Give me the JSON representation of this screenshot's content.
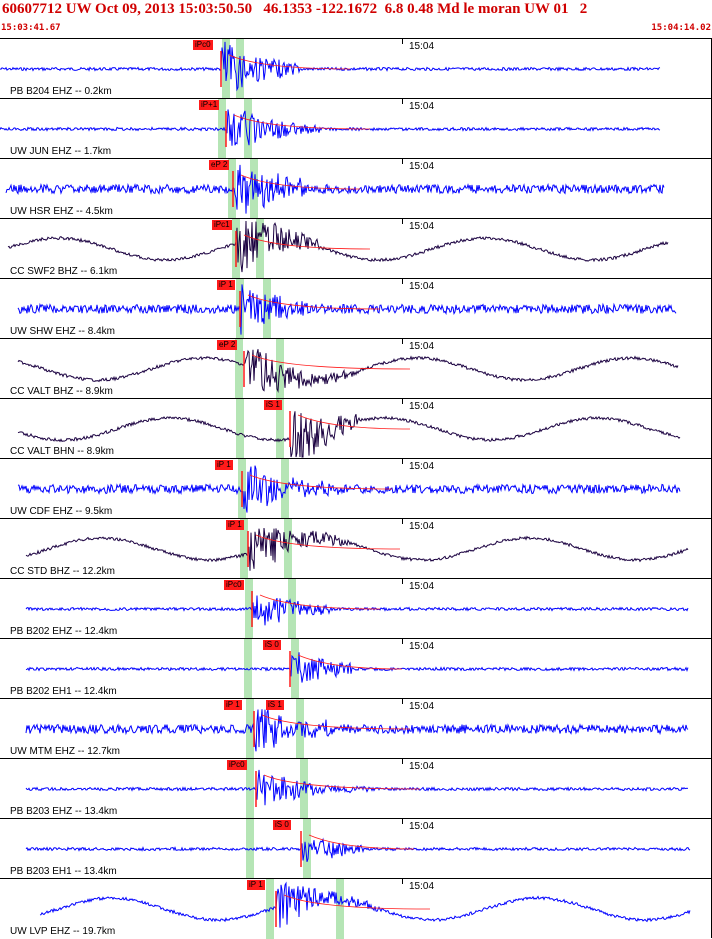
{
  "header": {
    "title": "60607712 UW Oct 09, 2013 15:03:50.50   46.1353 -122.1672  6.8 0.48 Md le moran UW 01   2",
    "start_time": "15:03:41.67",
    "end_time": "15:04:14.02"
  },
  "colors": {
    "header_text": "#d00000",
    "trace_ehz": "#0000ff",
    "trace_bhz": "#1a0040",
    "pick": "#ff1a1a",
    "band": "#a8e0a8"
  },
  "panels": [
    {
      "station": "PB B204 EHZ -- 0.2km",
      "time_label": "15:04",
      "pick": "iPc0",
      "trace": "blue"
    },
    {
      "station": "UW JUN EHZ -- 1.7km",
      "time_label": "15:04",
      "pick": "iP+1",
      "trace": "blue"
    },
    {
      "station": "UW HSR EHZ -- 4.5km",
      "time_label": "15:04",
      "pick": "eP 2",
      "trace": "blue"
    },
    {
      "station": "CC SWF2 BHZ -- 6.1km",
      "time_label": "15:04",
      "pick": "iPc1",
      "trace": "dark"
    },
    {
      "station": "UW SHW EHZ -- 8.4km",
      "time_label": "15:04",
      "pick": "iP 1",
      "trace": "blue"
    },
    {
      "station": "CC VALT BHZ -- 8.9km",
      "time_label": "15:04",
      "pick": "eP 2",
      "trace": "dark"
    },
    {
      "station": "CC VALT BHN -- 8.9km",
      "time_label": "15:04",
      "pick": "iS 1",
      "trace": "dark"
    },
    {
      "station": "UW CDF EHZ -- 9.5km",
      "time_label": "15:04",
      "pick": "iP 1",
      "trace": "blue"
    },
    {
      "station": "CC STD BHZ -- 12.2km",
      "time_label": "15:04",
      "pick": "iP 1",
      "trace": "dark"
    },
    {
      "station": "PB B202 EHZ -- 12.4km",
      "time_label": "15:04",
      "pick": "iPc0",
      "trace": "blue"
    },
    {
      "station": "PB B202 EH1 -- 12.4km",
      "time_label": "15:04",
      "pick": "iS 0",
      "trace": "blue"
    },
    {
      "station": "UW MTM EHZ -- 12.7km",
      "time_label": "15:04",
      "pick": "iP 1",
      "pick2": "iS 1",
      "trace": "blue"
    },
    {
      "station": "PB B203 EHZ -- 13.4km",
      "time_label": "15:04",
      "pick": "iPc0",
      "trace": "blue"
    },
    {
      "station": "PB B203 EH1 -- 13.4km",
      "time_label": "15:04",
      "pick": "iS 0",
      "trace": "blue"
    },
    {
      "station": "UW LVP EHZ -- 19.7km",
      "time_label": "15:04",
      "pick": "iP 1",
      "trace": "blue"
    }
  ]
}
